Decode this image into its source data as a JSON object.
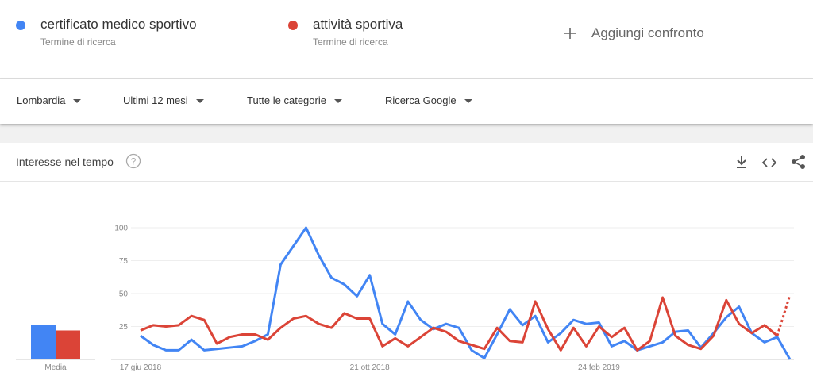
{
  "header": {
    "terms": [
      {
        "subtitle": "Termine di ricerca"
      },
      {
        "subtitle": "Termine di ricerca"
      }
    ],
    "add": "Aggiungi confronto"
  },
  "filters": [
    "Lombardia",
    "Ultimi 12 mesi",
    "Tutte le categorie",
    "Ricerca Google"
  ],
  "panel": {
    "title": "Interesse nel tempo"
  },
  "chart_data": {
    "type": "line",
    "categories": [
      "17 giu 2018",
      null,
      null,
      null,
      null,
      null,
      null,
      null,
      null,
      null,
      null,
      null,
      null,
      null,
      null,
      null,
      null,
      null,
      "21 ott 2018",
      null,
      null,
      null,
      null,
      null,
      null,
      null,
      null,
      null,
      null,
      null,
      null,
      null,
      null,
      null,
      null,
      null,
      "24 feb 2019",
      null,
      null,
      null,
      null,
      null,
      null,
      null,
      null,
      null,
      null,
      null,
      null,
      null,
      null,
      null
    ],
    "ylim": [
      0,
      100
    ],
    "yticks": [
      25,
      50,
      75,
      100
    ],
    "grid": true,
    "average_label": "Media",
    "series": [
      {
        "name": "certificato medico sportivo",
        "color": "#4285f4",
        "average": 26,
        "values": [
          18,
          11,
          7,
          7,
          15,
          7,
          8,
          9,
          10,
          14,
          19,
          72,
          86,
          100,
          79,
          62,
          57,
          48,
          64,
          27,
          19,
          44,
          30,
          23,
          27,
          24,
          7,
          1,
          19,
          38,
          26,
          33,
          13,
          20,
          30,
          27,
          28,
          10,
          14,
          7,
          10,
          13,
          21,
          22,
          9,
          20,
          32,
          40,
          20,
          13,
          17,
          0
        ]
      },
      {
        "name": "attività sportiva",
        "color": "#db4437",
        "average": 22,
        "dashed_last": true,
        "values": [
          22,
          26,
          25,
          26,
          33,
          30,
          12,
          17,
          19,
          19,
          15,
          24,
          31,
          33,
          27,
          24,
          35,
          31,
          31,
          10,
          16,
          10,
          17,
          24,
          21,
          14,
          11,
          8,
          24,
          14,
          13,
          44,
          23,
          7,
          24,
          10,
          25,
          17,
          24,
          7,
          14,
          47,
          18,
          11,
          8,
          18,
          45,
          27,
          20,
          26,
          18,
          49
        ]
      }
    ]
  }
}
